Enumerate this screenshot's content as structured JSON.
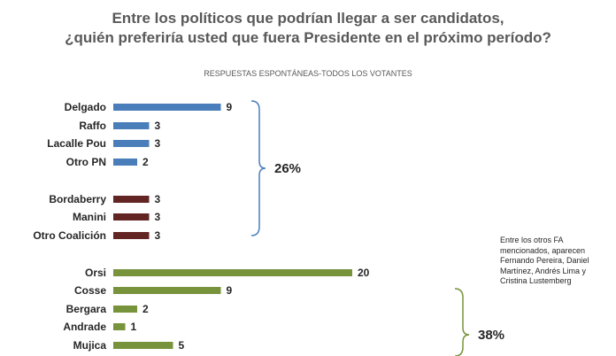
{
  "title_line1": "Entre los políticos que podrían llegar a ser candidatos,",
  "title_line2": "¿quién preferiría usted que fuera Presidente en el próximo período?",
  "subtitle": "RESPUESTAS ESPONTÁNEAS-TODOS LOS VOTANTES",
  "note": "Entre los otros FA mencionados, aparecen Fernando Pereira, Daniel Martínez, Andrés Lima y Cristina Lustemberg",
  "colors": {
    "pn": "#4a7ebb",
    "coalicion": "#632523",
    "fa": "#77933c"
  },
  "chart_data": {
    "type": "bar",
    "orientation": "horizontal",
    "title": "Entre los políticos que podrían llegar a ser candidatos, ¿quién preferiría usted que fuera Presidente en el próximo período?",
    "subtitle": "RESPUESTAS ESPONTÁNEAS-TODOS LOS VOTANTES",
    "xlim": [
      0,
      20
    ],
    "grid": false,
    "categories": [
      "Delgado",
      "Raffo",
      "Lacalle Pou",
      "Otro PN",
      "Bordaberry",
      "Manini",
      "Otro Coalición",
      "Orsi",
      "Cosse",
      "Bergara",
      "Andrade",
      "Mujica"
    ],
    "values": [
      9,
      3,
      3,
      2,
      3,
      3,
      3,
      20,
      9,
      2,
      1,
      5
    ],
    "groups": [
      "pn",
      "pn",
      "pn",
      "pn",
      "coalicion",
      "coalicion",
      "coalicion",
      "fa",
      "fa",
      "fa",
      "fa",
      "fa"
    ],
    "annotations": [
      {
        "text": "26%",
        "bracket": "Delgado-Otro Coalición"
      },
      {
        "text": "38%",
        "bracket": "Cosse-Mujica"
      }
    ]
  }
}
